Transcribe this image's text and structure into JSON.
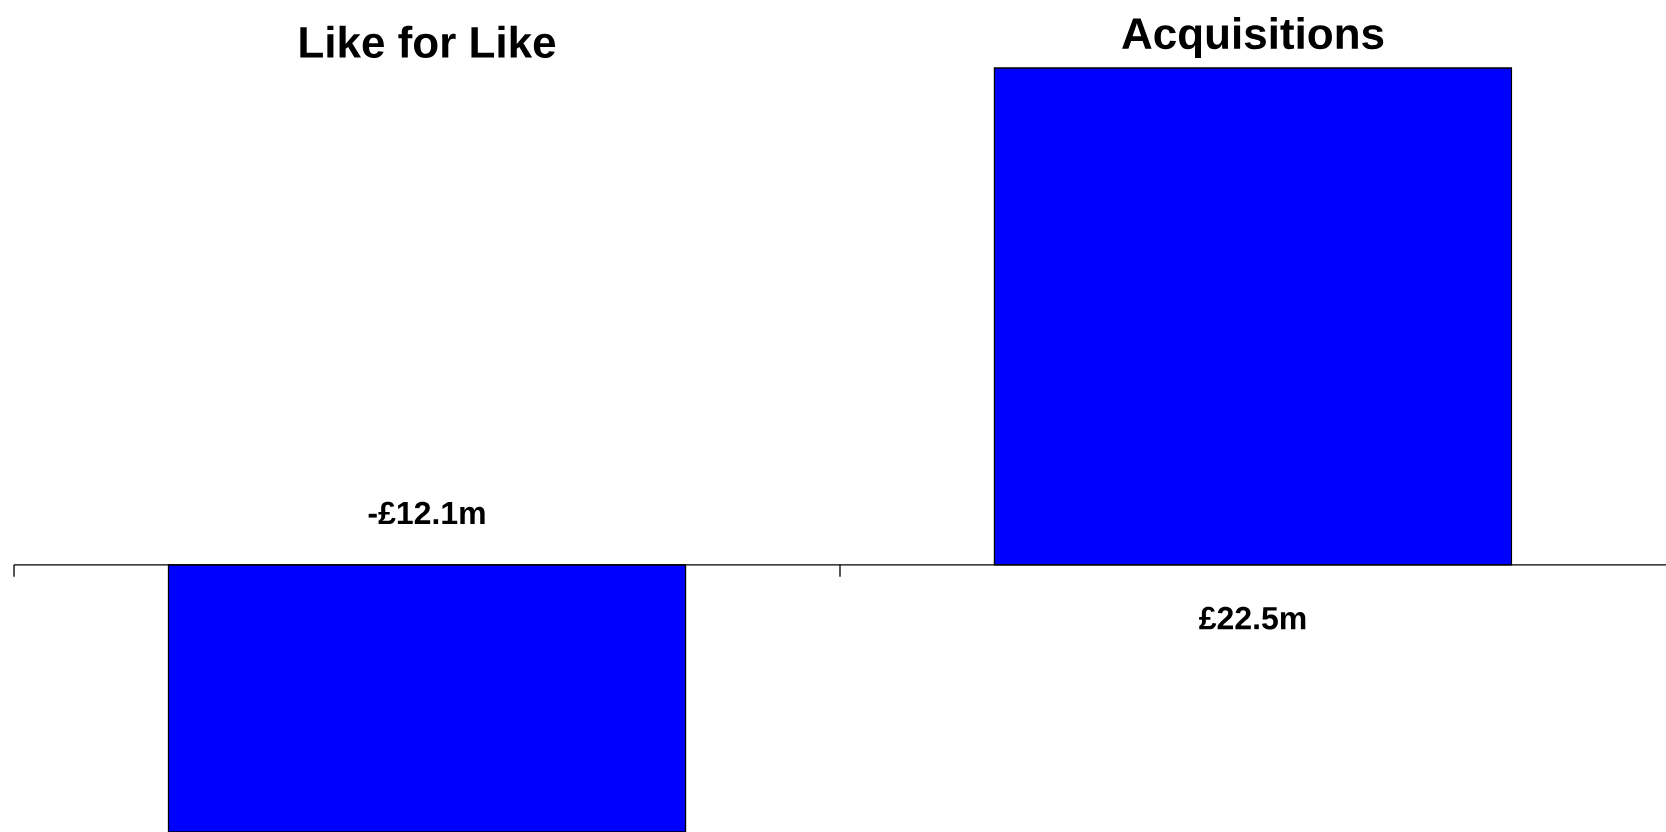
{
  "chart_data": {
    "type": "bar",
    "categories": [
      "Like for Like",
      "Acquisitions"
    ],
    "values": [
      -12.1,
      22.5
    ],
    "value_labels": [
      "-£12.1m",
      "£22.5m"
    ],
    "color": "#0000ff"
  }
}
